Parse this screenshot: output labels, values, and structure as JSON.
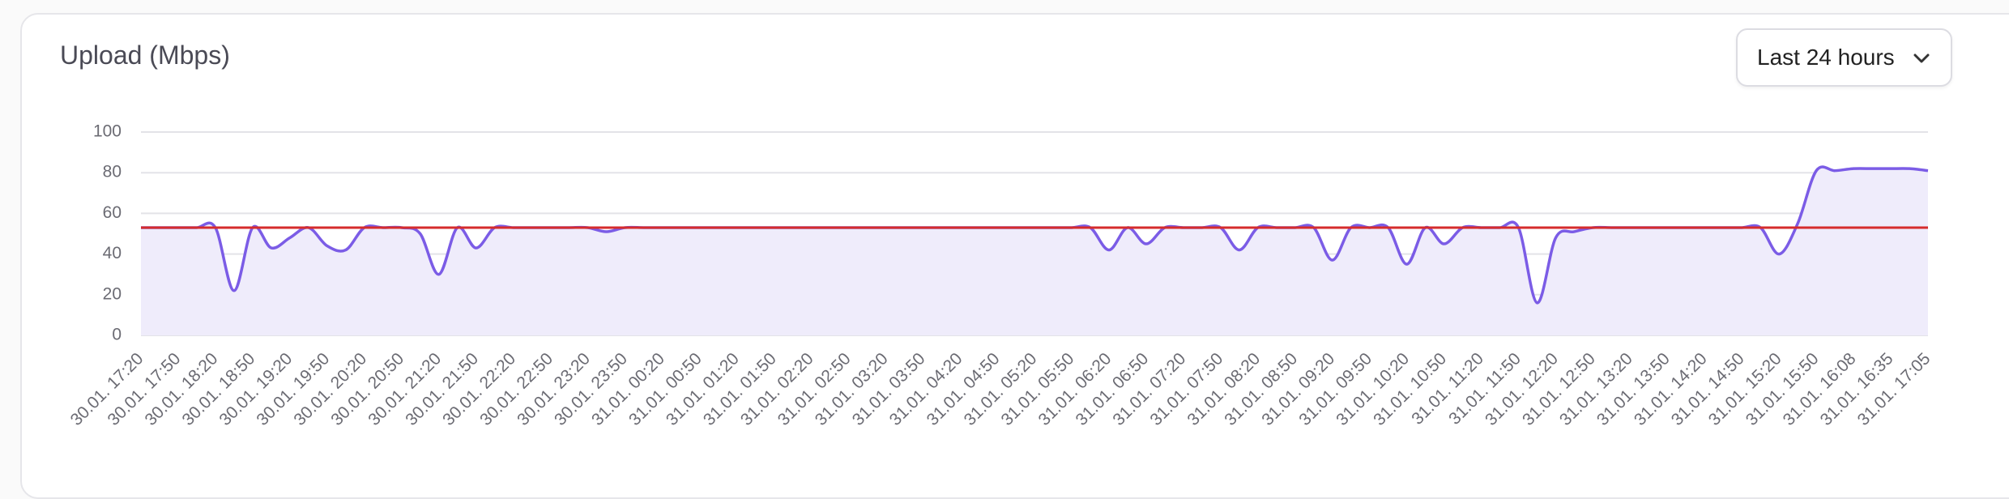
{
  "chart_data": {
    "type": "line",
    "title": "Upload (Mbps)",
    "range_selector": "Last 24 hours",
    "categories": [
      "30.01. 17:20",
      null,
      "30.01. 17:50",
      null,
      "30.01. 18:20",
      null,
      "30.01. 18:50",
      null,
      "30.01. 19:20",
      null,
      "30.01. 19:50",
      null,
      "30.01. 20:20",
      null,
      "30.01. 20:50",
      null,
      "30.01. 21:20",
      null,
      "30.01. 21:50",
      null,
      "30.01. 22:20",
      null,
      "30.01. 22:50",
      null,
      "30.01. 23:20",
      null,
      "30.01. 23:50",
      null,
      "31.01. 00:20",
      null,
      "31.01. 00:50",
      null,
      "31.01. 01:20",
      null,
      "31.01. 01:50",
      null,
      "31.01. 02:20",
      null,
      "31.01. 02:50",
      null,
      "31.01. 03:20",
      null,
      "31.01. 03:50",
      null,
      "31.01. 04:20",
      null,
      "31.01. 04:50",
      null,
      "31.01. 05:20",
      null,
      "31.01. 05:50",
      null,
      "31.01. 06:20",
      null,
      "31.01. 06:50",
      null,
      "31.01. 07:20",
      null,
      "31.01. 07:50",
      null,
      "31.01. 08:20",
      null,
      "31.01. 08:50",
      null,
      "31.01. 09:20",
      null,
      "31.01. 09:50",
      null,
      "31.01. 10:20",
      null,
      "31.01. 10:50",
      null,
      "31.01. 11:20",
      null,
      "31.01. 11:50",
      null,
      "31.01. 12:20",
      null,
      "31.01. 12:50",
      null,
      "31.01. 13:20",
      null,
      "31.01. 13:50",
      null,
      "31.01. 14:20",
      null,
      "31.01. 14:50",
      null,
      "31.01. 15:20",
      null,
      "31.01. 15:50",
      null,
      "31.01. 16:08",
      null,
      "31.01. 16:35",
      null,
      "31.01. 17:05"
    ],
    "series": [
      {
        "color": "#7b5ce6",
        "fill": "#efecfb",
        "values": [
          53,
          53,
          53,
          53,
          53,
          22,
          53,
          43,
          48,
          53,
          44,
          42,
          53,
          53,
          53,
          50,
          30,
          53,
          43,
          53,
          53,
          53,
          53,
          53,
          53,
          51,
          53,
          53,
          53,
          53,
          53,
          53,
          53,
          53,
          53,
          53,
          53,
          53,
          53,
          53,
          53,
          53,
          53,
          53,
          53,
          53,
          53,
          53,
          53,
          53,
          53,
          53,
          42,
          53,
          45,
          53,
          53,
          53,
          53,
          42,
          53,
          53,
          53,
          53,
          37,
          53,
          53,
          53,
          35,
          53,
          45,
          53,
          53,
          53,
          53,
          16,
          48,
          51,
          53,
          53,
          53,
          53,
          53,
          53,
          53,
          53,
          53,
          53,
          40,
          55,
          81,
          81,
          82,
          82,
          82,
          82,
          81
        ]
      }
    ],
    "threshold": 53,
    "threshold_color": "#d62c2c",
    "ylim": [
      0,
      100
    ],
    "yticks": [
      0,
      20,
      40,
      60,
      80,
      100
    ],
    "grid": true
  }
}
